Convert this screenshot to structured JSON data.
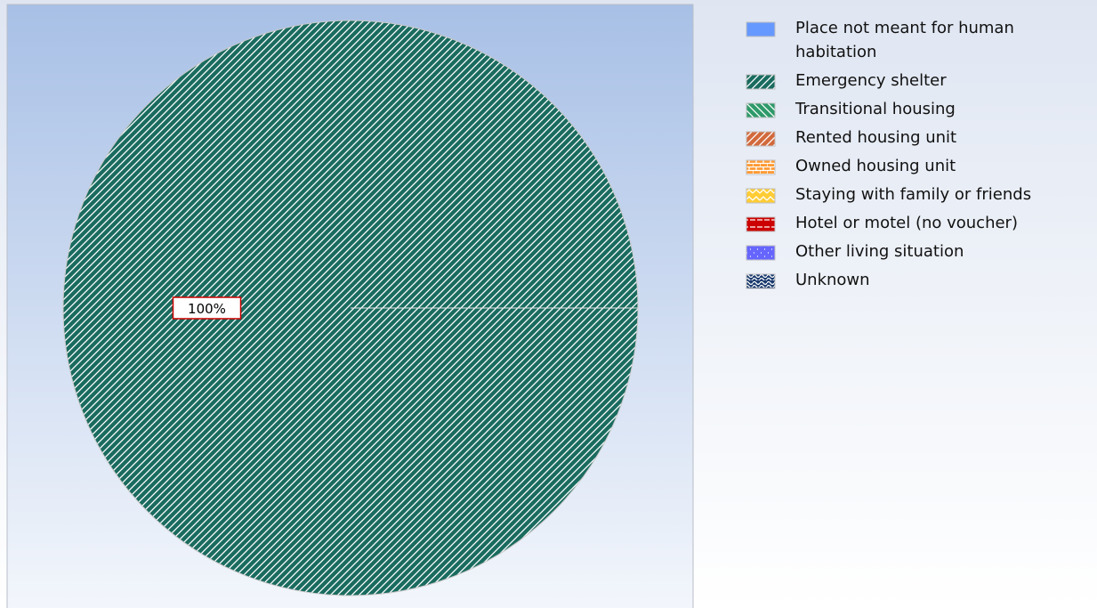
{
  "chart_data": {
    "type": "pie",
    "categories": [
      "Place not meant for human habitation",
      "Emergency shelter",
      "Transitional housing",
      "Rented housing unit",
      "Owned housing unit",
      "Staying with family or friends",
      "Hotel or motel (no voucher)",
      "Other living situation",
      "Unknown"
    ],
    "values": [
      0,
      100,
      0,
      0,
      0,
      0,
      0,
      0,
      0
    ],
    "value_labels": [
      null,
      "100%",
      null,
      null,
      null,
      null,
      null,
      null,
      null
    ],
    "colors": [
      "#6699ff",
      "#1a6b5f",
      "#2e9a6a",
      "#d2693c",
      "#ff9a33",
      "#ffcc33",
      "#cc0000",
      "#6666ff",
      "#1a3a6e"
    ],
    "patterns": [
      "solid",
      "diagonal",
      "back-diagonal",
      "diagonal",
      "brick",
      "zigzag",
      "dash",
      "dots",
      "wave"
    ]
  }
}
